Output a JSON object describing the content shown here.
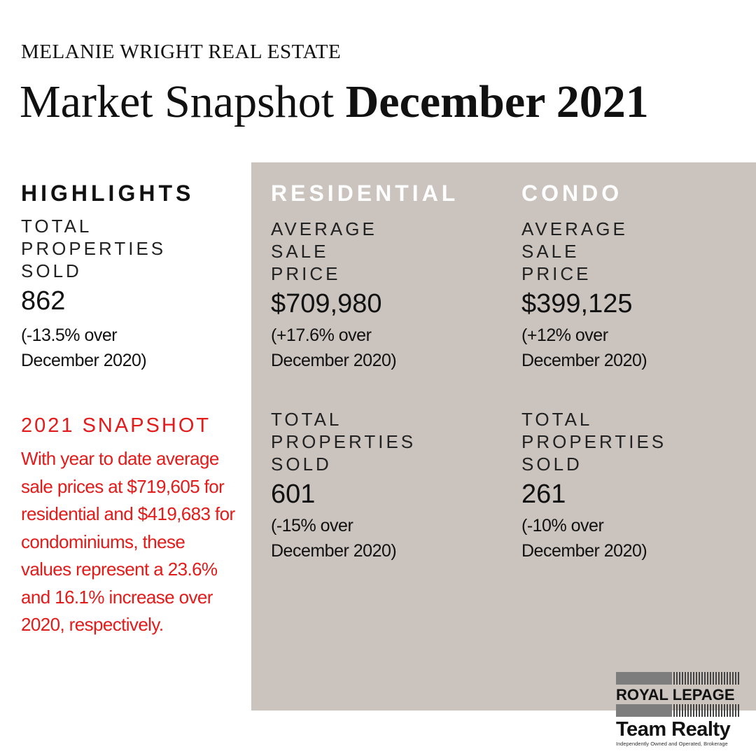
{
  "header": {
    "brand": "MELANIE WRIGHT REAL ESTATE",
    "title_regular": "Market Snapshot ",
    "title_bold": "December 2021"
  },
  "highlights": {
    "heading": "HIGHLIGHTS",
    "label_line1": "TOTAL",
    "label_line2": "PROPERTIES",
    "label_line3": "SOLD",
    "value": "862",
    "change_line1": "(-13.5% over",
    "change_line2": "December 2020)"
  },
  "snapshot": {
    "heading": "2021 SNAPSHOT",
    "text": "With year to date average sale prices at $719,605 for residential and $419,683 for condominiums, these values represent a 23.6% and 16.1% increase over 2020, respectively."
  },
  "residential": {
    "heading": "RESIDENTIAL",
    "avg_label_line1": "AVERAGE",
    "avg_label_line2": "SALE",
    "avg_label_line3": "PRICE",
    "avg_value": "$709,980",
    "avg_change_line1": "(+17.6% over",
    "avg_change_line2": "December 2020)",
    "sold_label_line1": "TOTAL",
    "sold_label_line2": "PROPERTIES",
    "sold_label_line3": "SOLD",
    "sold_value": "601",
    "sold_change_line1": "(-15% over",
    "sold_change_line2": "December 2020)"
  },
  "condo": {
    "heading": "CONDO",
    "avg_label_line1": "AVERAGE",
    "avg_label_line2": "SALE",
    "avg_label_line3": "PRICE",
    "avg_value": "$399,125",
    "avg_change_line1": "(+12% over",
    "avg_change_line2": "December 2020)",
    "sold_label_line1": "TOTAL",
    "sold_label_line2": "PROPERTIES",
    "sold_label_line3": "SOLD",
    "sold_value": "261",
    "sold_change_line1": "(-10% over",
    "sold_change_line2": "December 2020)"
  },
  "logo": {
    "line1": "ROYAL LEPAGE",
    "line2": "Team Realty",
    "tagline": "Independently Owned and Operated, Brokerage"
  },
  "colors": {
    "panel": "#cac3be",
    "accent_red": "#e21b1b"
  }
}
